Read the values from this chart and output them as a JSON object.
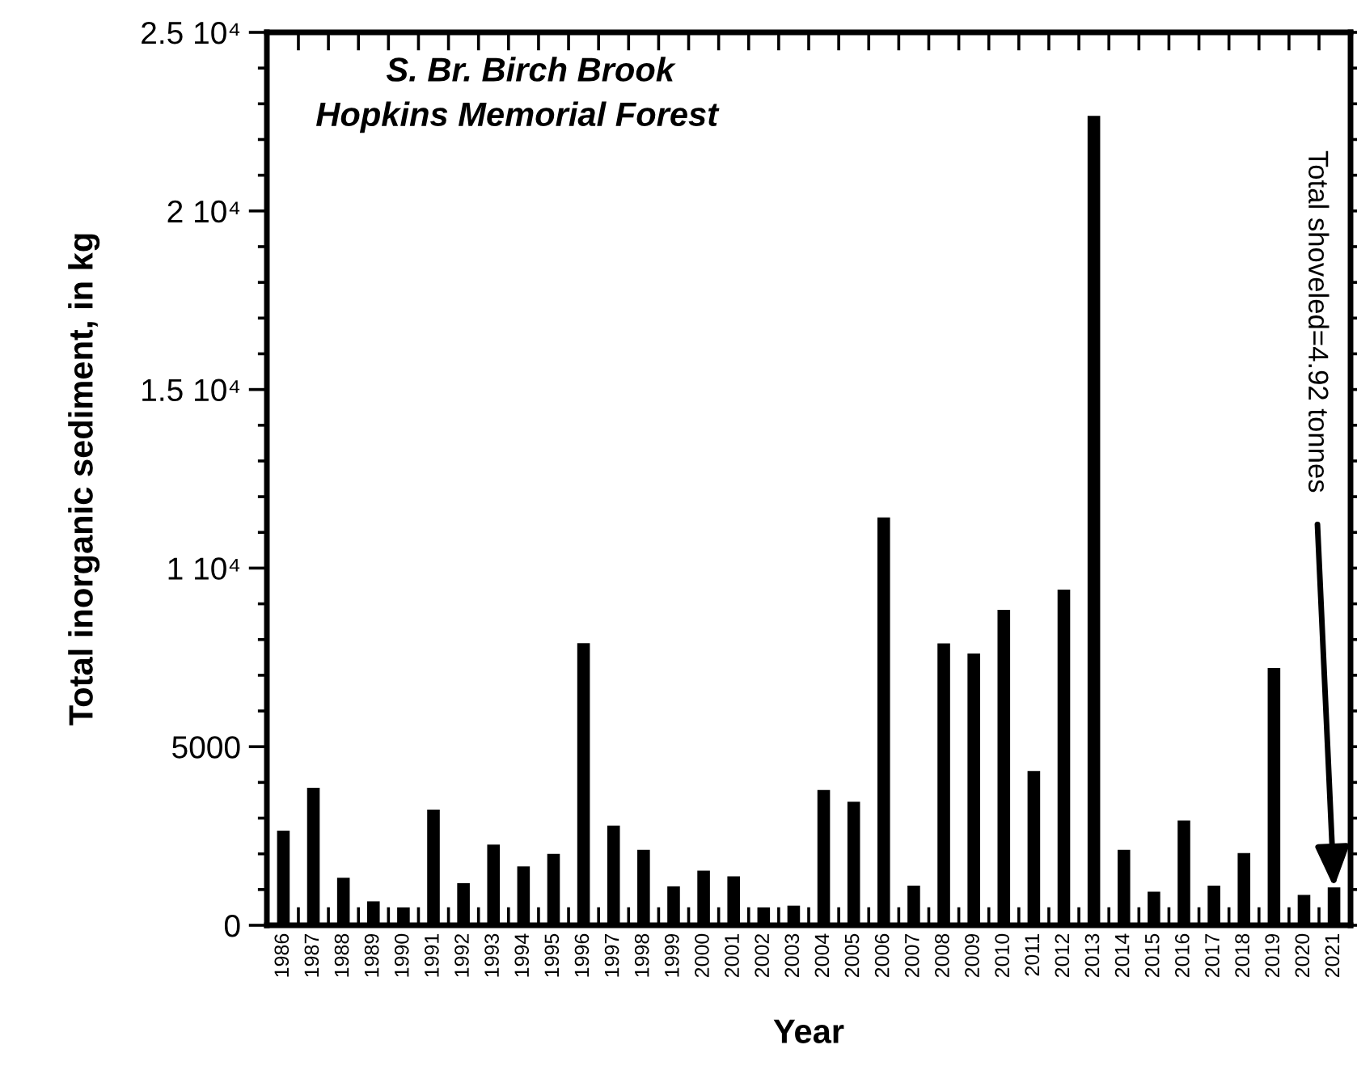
{
  "chart_data": {
    "type": "bar",
    "title": "S. Br. Birch Brook",
    "subtitle": "Hopkins Memorial Forest",
    "xlabel": "Year",
    "ylabel": "Total inorganic sediment, in kg",
    "categories": [
      "1986",
      "1987",
      "1988",
      "1989",
      "1990",
      "1991",
      "1992",
      "1993",
      "1994",
      "1995",
      "1996",
      "1997",
      "1998",
      "1999",
      "2000",
      "2001",
      "2002",
      "2003",
      "2004",
      "2005",
      "2006",
      "2007",
      "2008",
      "2009",
      "2010",
      "2011",
      "2012",
      "2013",
      "2014",
      "2015",
      "2016",
      "2017",
      "2018",
      "2019",
      "2020",
      "2021"
    ],
    "values": [
      2650,
      3850,
      1330,
      670,
      500,
      3240,
      1180,
      2260,
      1650,
      2000,
      7900,
      2790,
      2110,
      1090,
      1530,
      1370,
      500,
      550,
      3790,
      3460,
      11420,
      1110,
      7890,
      7610,
      8830,
      4320,
      9400,
      22660,
      2110,
      940,
      2930,
      1110,
      2020,
      7200,
      850,
      1060
    ],
    "color": "#000000",
    "ylim": [
      0,
      25000
    ],
    "yticks": [
      0,
      5000,
      {
        "value": 10000,
        "label": "1 10⁴"
      },
      {
        "value": 15000,
        "label": "1.5 10⁴"
      },
      {
        "value": 20000,
        "label": "2 10⁴"
      },
      {
        "value": 25000,
        "label": "2.5 10⁴"
      }
    ],
    "grid": false,
    "annotations": [
      {
        "text": "Total shoveled=4.92 tonnes",
        "x": "2021",
        "y": 1060
      }
    ]
  }
}
